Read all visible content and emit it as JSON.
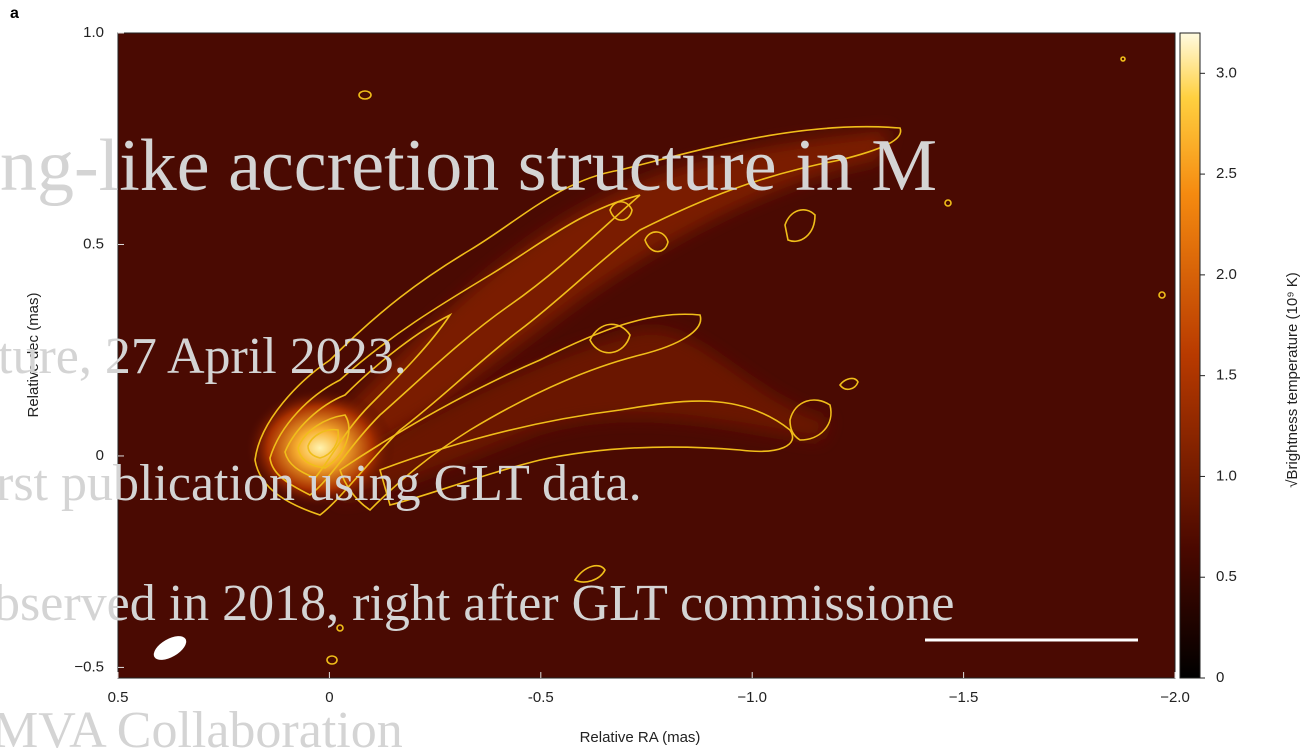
{
  "chart_data": {
    "type": "image",
    "panel_label": "a",
    "x_label": "Relative RA (mas)",
    "y_label": "Relative dec (mas)",
    "colorbar_label": "√Brightness temperature (10⁹ K)",
    "xlim": [
      0.5,
      -2.0
    ],
    "xticks": [
      0.5,
      0,
      -0.5,
      {
        "value": -1,
        "label": "−1.0"
      },
      {
        "value": -1.5,
        "label": "−1.5"
      },
      {
        "value": -2,
        "label": "−2.0"
      }
    ],
    "ylim": [
      -0.525,
      1.0
    ],
    "yticks": [
      {
        "value": 1,
        "label": "1.0"
      },
      0.5,
      0,
      {
        "value": -0.5,
        "label": "−0.5"
      }
    ],
    "clim": [
      0,
      3.2
    ],
    "cticks": [
      0,
      0.5,
      {
        "value": 1,
        "label": "1.0"
      },
      1.5,
      {
        "value": 2,
        "label": "2.0"
      },
      2.5,
      {
        "value": 3,
        "label": "3.0"
      }
    ]
  },
  "overlay": {
    "lines": [
      "ng-like accretion structure in M",
      "ture, 27 April 2023.",
      "rst publication using GLT data.",
      "bserved in 2018, right after GLT commissione",
      "MVA Collaboration"
    ]
  }
}
